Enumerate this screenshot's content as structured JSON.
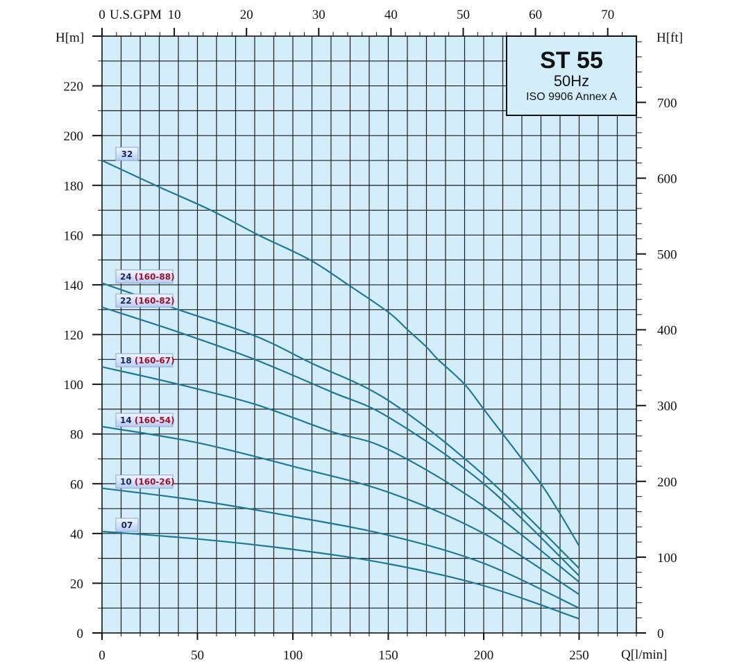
{
  "chart_data": {
    "type": "line",
    "title": "ST 55",
    "subtitle": "50Hz",
    "note": "ISO 9906 Annex A",
    "xlabel": "Q[l/min]",
    "ylabel": "H[m]",
    "y2label": "H[ft]",
    "x2label": "U.S.GPM",
    "xlim": [
      0,
      280
    ],
    "ylim": [
      0,
      240
    ],
    "xticks": [
      0,
      50,
      100,
      150,
      200,
      250
    ],
    "yticks": [
      0,
      20,
      40,
      60,
      80,
      100,
      120,
      140,
      160,
      180,
      200,
      220
    ],
    "y2ticks": [
      0,
      100,
      200,
      300,
      400,
      500,
      600,
      700
    ],
    "x2ticks": [
      0,
      10,
      20,
      30,
      40,
      50,
      60,
      70
    ],
    "grid": true,
    "colors": {
      "background": "#d3eefa",
      "curve": "#1b7b96",
      "grid": "#1a1a1a",
      "label_num": "#1a2766",
      "label_code": "#a0102a"
    },
    "series": [
      {
        "name": "32",
        "code": "",
        "points": [
          [
            0,
            190
          ],
          [
            28,
            180
          ],
          [
            57,
            170
          ],
          [
            82,
            160
          ],
          [
            109,
            150
          ],
          [
            129,
            140
          ],
          [
            150,
            129
          ],
          [
            160,
            122
          ],
          [
            170,
            115
          ],
          [
            176,
            110
          ],
          [
            190,
            100
          ],
          [
            200,
            90
          ],
          [
            210,
            80
          ],
          [
            220,
            70
          ],
          [
            230,
            60
          ],
          [
            240,
            48
          ],
          [
            250,
            35
          ]
        ]
      },
      {
        "name": "24",
        "code": "(160-88)",
        "points": [
          [
            0,
            140.7
          ],
          [
            40,
            130
          ],
          [
            80,
            119.5
          ],
          [
            110,
            108.4
          ],
          [
            150,
            93.5
          ],
          [
            200,
            63.5
          ],
          [
            250,
            26
          ]
        ]
      },
      {
        "name": "22",
        "code": "(160-82)",
        "points": [
          [
            0,
            131
          ],
          [
            40,
            121
          ],
          [
            80,
            110
          ],
          [
            120,
            97
          ],
          [
            150,
            86.8
          ],
          [
            200,
            60
          ],
          [
            250,
            23
          ]
        ]
      },
      {
        "name": "18",
        "code": "(160-67)",
        "points": [
          [
            0,
            107
          ],
          [
            40,
            100
          ],
          [
            80,
            92
          ],
          [
            120,
            81
          ],
          [
            150,
            73.8
          ],
          [
            200,
            51
          ],
          [
            250,
            20.5
          ]
        ]
      },
      {
        "name": "14",
        "code": "(160-54)",
        "points": [
          [
            0,
            83
          ],
          [
            50,
            76.5
          ],
          [
            100,
            67
          ],
          [
            150,
            56.6
          ],
          [
            200,
            40
          ],
          [
            250,
            15.5
          ]
        ]
      },
      {
        "name": "10",
        "code": "(160-26)",
        "points": [
          [
            0,
            58.2
          ],
          [
            50,
            53.3
          ],
          [
            100,
            46.8
          ],
          [
            150,
            39.3
          ],
          [
            200,
            28
          ],
          [
            250,
            10
          ]
        ]
      },
      {
        "name": "07",
        "code": "",
        "points": [
          [
            0,
            40.8
          ],
          [
            50,
            37.8
          ],
          [
            100,
            33.6
          ],
          [
            150,
            27.8
          ],
          [
            200,
            19
          ],
          [
            250,
            5.7
          ]
        ]
      }
    ]
  }
}
